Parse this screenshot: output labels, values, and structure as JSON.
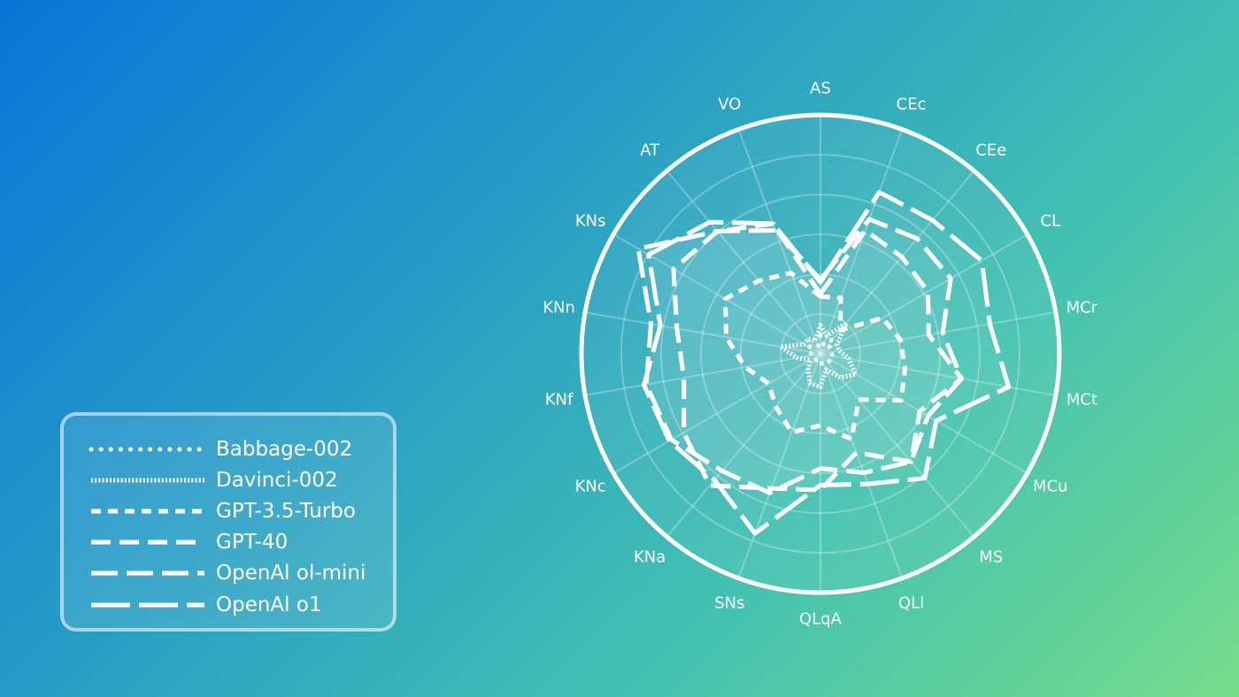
{
  "chart_data": {
    "type": "radar",
    "title": "",
    "axes": [
      "AS",
      "CEc",
      "CEe",
      "CL",
      "MCr",
      "MCt",
      "MCu",
      "MS",
      "QLl",
      "QLqA",
      "SNs",
      "KNa",
      "KNc",
      "KNf",
      "KNn",
      "KNs",
      "AT",
      "VO"
    ],
    "rmax": 100,
    "grid": true,
    "grid_levels": 6,
    "legend_position": "bottom-left",
    "series": [
      {
        "name": "Babbage-002",
        "dash": "round-dot",
        "values": [
          8,
          4,
          8,
          4,
          5,
          5,
          6,
          4,
          3,
          5,
          4,
          3,
          2,
          3,
          5,
          6,
          4,
          3
        ]
      },
      {
        "name": "Davinci-002",
        "dash": "dense",
        "values": [
          12,
          8,
          17,
          8,
          8,
          12,
          17,
          13,
          7,
          14,
          13,
          8,
          5,
          10,
          17,
          8,
          8,
          6
        ]
      },
      {
        "name": "GPT-3.5-Turbo",
        "dash": "short",
        "values": [
          24,
          25,
          13,
          30,
          34,
          36,
          39,
          25,
          38,
          30,
          35,
          29,
          25,
          32,
          40,
          46,
          40,
          36
        ]
      },
      {
        "name": "GPT-40",
        "dash": "medium",
        "values": [
          25,
          55,
          53,
          52,
          46,
          60,
          48,
          59,
          44,
          57,
          60,
          72,
          66,
          58,
          61,
          71,
          67,
          58
        ]
      },
      {
        "name": "OpenAl ol-mini",
        "dash": "long",
        "values": [
          31,
          60,
          63,
          63,
          52,
          60,
          52,
          59,
          53,
          48,
          62,
          64,
          72,
          74,
          72,
          88,
          67,
          55
        ]
      },
      {
        "name": "OpenAl o1",
        "dash": "xlong",
        "values": [
          30,
          72,
          73,
          78,
          72,
          80,
          56,
          68,
          58,
          55,
          80,
          69,
          73,
          75,
          68,
          83,
          72,
          58
        ]
      }
    ]
  }
}
